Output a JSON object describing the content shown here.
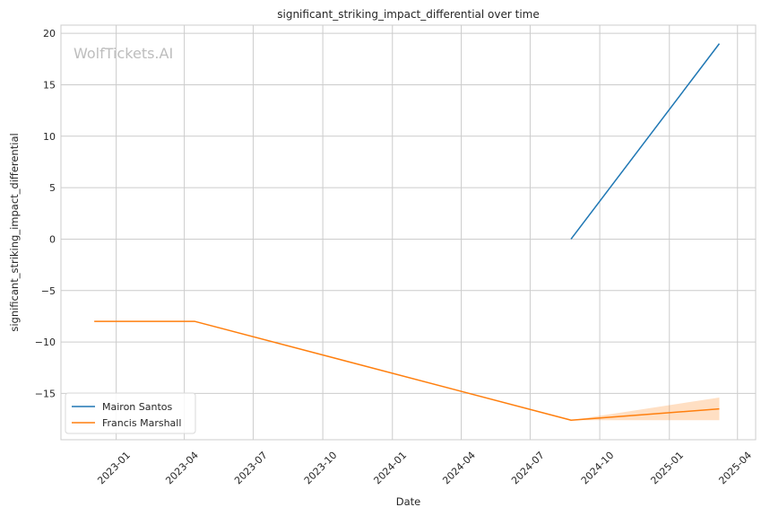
{
  "chart_data": {
    "type": "line",
    "title": "significant_striking_impact_differential over time",
    "xlabel": "Date",
    "ylabel": "significant_striking_impact_differential",
    "watermark": "WolfTickets.AI",
    "xlim": [
      "2022-10-20",
      "2025-04-25"
    ],
    "ylim": [
      -19.5,
      20.8
    ],
    "x_ticks": [
      "2023-01",
      "2023-04",
      "2023-07",
      "2023-10",
      "2024-01",
      "2024-04",
      "2024-07",
      "2024-10",
      "2025-01",
      "2025-04"
    ],
    "y_ticks": [
      20,
      15,
      10,
      5,
      0,
      -5,
      -10,
      -15
    ],
    "y_tick_labels": [
      "20",
      "15",
      "10",
      "5",
      "0",
      "−5",
      "−10",
      "−15"
    ],
    "grid": true,
    "legend_position": "lower-left",
    "series": [
      {
        "name": "Mairon Santos",
        "color": "#1f77b4",
        "points": [
          {
            "x": "2024-08-24",
            "y": 0
          },
          {
            "x": "2025-03-08",
            "y": 19
          }
        ]
      },
      {
        "name": "Francis Marshall",
        "color": "#ff7f0e",
        "points": [
          {
            "x": "2022-12-03",
            "y": -8
          },
          {
            "x": "2023-04-15",
            "y": -8
          },
          {
            "x": "2024-08-24",
            "y": -17.6
          },
          {
            "x": "2025-03-08",
            "y": -16.5
          }
        ],
        "band": [
          {
            "x": "2024-08-24",
            "low": -17.6,
            "high": -17.6
          },
          {
            "x": "2025-03-08",
            "low": -17.6,
            "high": -15.4
          }
        ]
      }
    ]
  }
}
